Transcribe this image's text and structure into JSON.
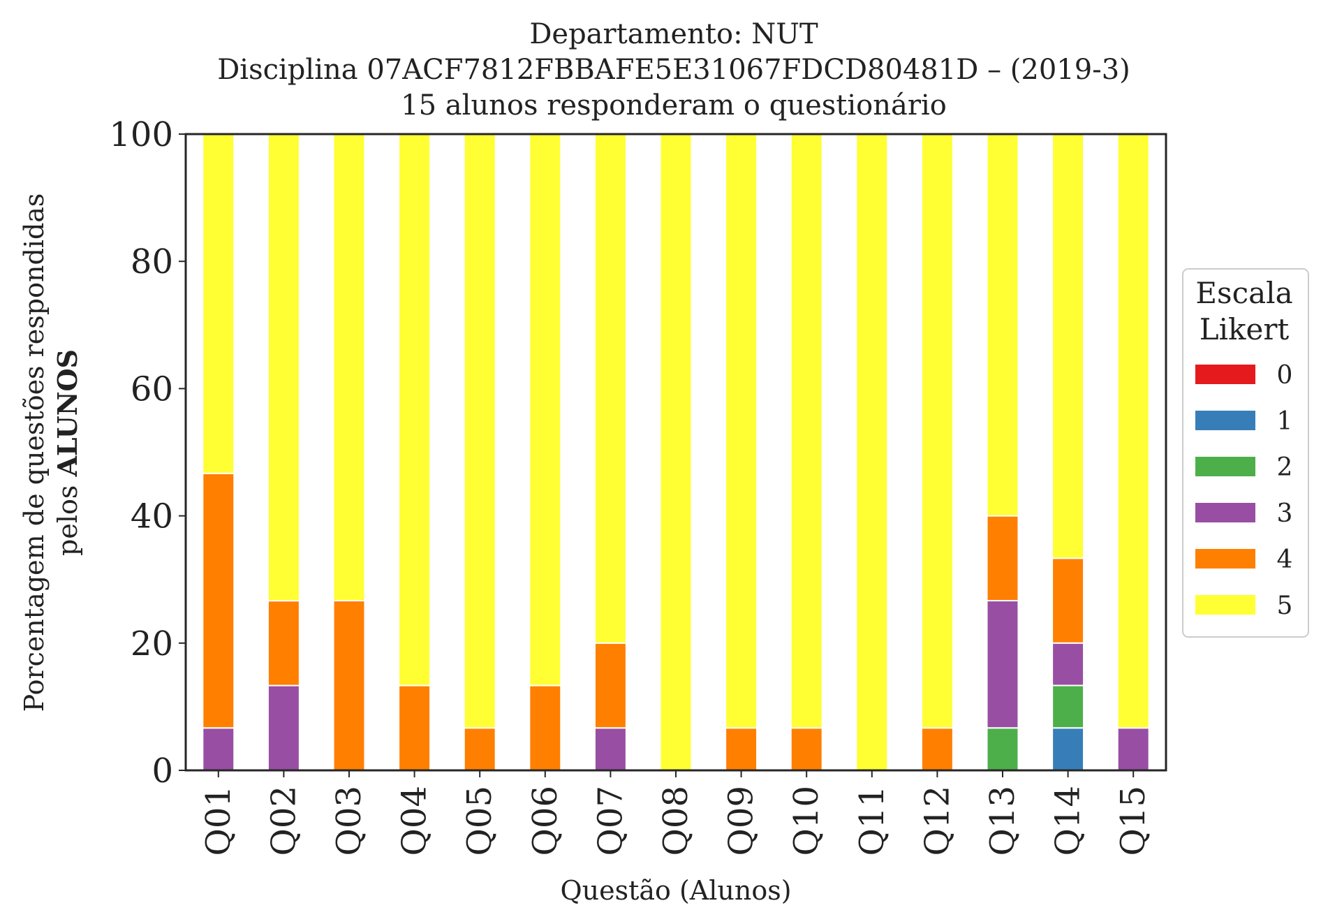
{
  "chart_data": {
    "type": "bar",
    "stacked": true,
    "title_lines": [
      "Departamento: NUT",
      "Disciplina 07ACF7812FBBAFE5E31067FDCD80481D – (2019-3)",
      "15 alunos responderam o questionário"
    ],
    "xlabel": "Questão (Alunos)",
    "ylabel_line1": "Porcentagem de questões respondidas",
    "ylabel_line2_prefix": "pelos ",
    "ylabel_line2_bold": "ALUNOS",
    "ylim": [
      0,
      100
    ],
    "yticks": [
      0,
      20,
      40,
      60,
      80,
      100
    ],
    "categories": [
      "Q01",
      "Q02",
      "Q03",
      "Q04",
      "Q05",
      "Q06",
      "Q07",
      "Q08",
      "Q09",
      "Q10",
      "Q11",
      "Q12",
      "Q13",
      "Q14",
      "Q15"
    ],
    "legend_title_lines": [
      "Escala",
      "Likert"
    ],
    "legend_position": "right",
    "grid": false,
    "series": [
      {
        "name": "0",
        "color": "#e41a1c",
        "values": [
          0,
          0,
          0,
          0,
          0,
          0,
          0,
          0,
          0,
          0,
          0,
          0,
          0,
          0,
          0
        ]
      },
      {
        "name": "1",
        "color": "#377eb8",
        "values": [
          0,
          0,
          0,
          0,
          0,
          0,
          0,
          0,
          0,
          0,
          0,
          0,
          0,
          6.67,
          0
        ]
      },
      {
        "name": "2",
        "color": "#4daf4a",
        "values": [
          0,
          0,
          0,
          0,
          0,
          0,
          0,
          0,
          0,
          0,
          0,
          0,
          6.67,
          6.67,
          0
        ]
      },
      {
        "name": "3",
        "color": "#984ea3",
        "values": [
          6.67,
          13.33,
          0,
          0,
          0,
          0,
          6.67,
          0,
          0,
          0,
          0,
          0,
          20,
          6.67,
          6.67
        ]
      },
      {
        "name": "4",
        "color": "#ff7f00",
        "values": [
          40,
          13.33,
          26.67,
          13.33,
          6.67,
          13.33,
          13.33,
          0,
          6.67,
          6.67,
          0,
          6.67,
          13.33,
          13.33,
          0
        ]
      },
      {
        "name": "5",
        "color": "#ffff33",
        "values": [
          53.33,
          73.33,
          73.33,
          86.67,
          93.33,
          86.67,
          80,
          100,
          93.33,
          93.33,
          100,
          93.33,
          60,
          66.67,
          93.33
        ]
      }
    ]
  }
}
